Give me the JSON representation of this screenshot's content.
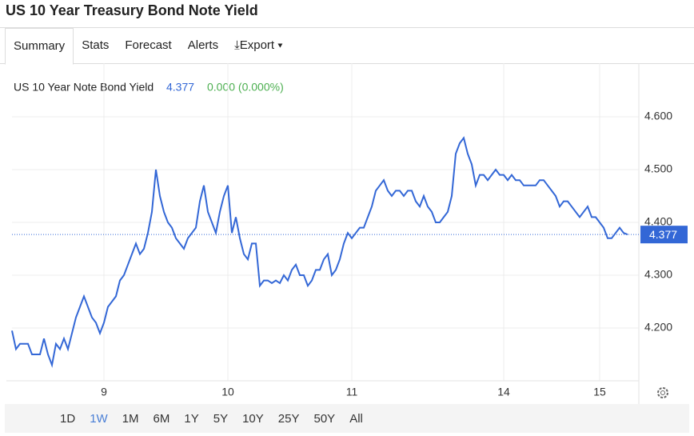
{
  "header": {
    "title": "US 10 Year Treasury Bond Note Yield"
  },
  "tabs": [
    "Summary",
    "Stats",
    "Forecast",
    "Alerts",
    "Export"
  ],
  "quote": {
    "name": "US 10 Year Note Bond Yield",
    "price": "4.377",
    "change": "0.000 (0.000%)"
  },
  "ranges": [
    "1D",
    "1W",
    "1M",
    "6M",
    "1Y",
    "5Y",
    "10Y",
    "25Y",
    "50Y",
    "All"
  ],
  "chart_data": {
    "type": "line",
    "color": "#3367d6",
    "ylim": [
      4.1,
      4.7
    ],
    "xlim": [
      0,
      156
    ],
    "yticks": [
      {
        "value": 4.2,
        "label": "4.200"
      },
      {
        "value": 4.3,
        "label": "4.300"
      },
      {
        "value": 4.4,
        "label": "4.400"
      },
      {
        "value": 4.5,
        "label": "4.500"
      },
      {
        "value": 4.6,
        "label": "4.600"
      }
    ],
    "xticks": [
      {
        "value": 23,
        "label": "9"
      },
      {
        "value": 54,
        "label": "10"
      },
      {
        "value": 85,
        "label": "11"
      },
      {
        "value": 123,
        "label": "14"
      },
      {
        "value": 147,
        "label": "15"
      }
    ],
    "grid": true,
    "values": [
      4.195,
      4.16,
      4.17,
      4.17,
      4.17,
      4.15,
      4.15,
      4.15,
      4.18,
      4.15,
      4.13,
      4.17,
      4.16,
      4.18,
      4.16,
      4.19,
      4.22,
      4.24,
      4.26,
      4.24,
      4.22,
      4.21,
      4.19,
      4.21,
      4.24,
      4.25,
      4.26,
      4.29,
      4.3,
      4.32,
      4.34,
      4.36,
      4.34,
      4.35,
      4.38,
      4.42,
      4.5,
      4.45,
      4.42,
      4.4,
      4.39,
      4.37,
      4.36,
      4.35,
      4.37,
      4.38,
      4.39,
      4.44,
      4.47,
      4.42,
      4.4,
      4.38,
      4.42,
      4.45,
      4.47,
      4.38,
      4.41,
      4.37,
      4.34,
      4.33,
      4.36,
      4.36,
      4.28,
      4.29,
      4.29,
      4.285,
      4.29,
      4.285,
      4.3,
      4.29,
      4.31,
      4.32,
      4.3,
      4.3,
      4.28,
      4.29,
      4.31,
      4.31,
      4.33,
      4.34,
      4.3,
      4.31,
      4.33,
      4.36,
      4.38,
      4.37,
      4.38,
      4.39,
      4.39,
      4.41,
      4.43,
      4.46,
      4.47,
      4.48,
      4.46,
      4.45,
      4.46,
      4.46,
      4.45,
      4.46,
      4.46,
      4.44,
      4.43,
      4.45,
      4.43,
      4.42,
      4.4,
      4.4,
      4.41,
      4.42,
      4.45,
      4.53,
      4.55,
      4.56,
      4.53,
      4.51,
      4.47,
      4.49,
      4.49,
      4.48,
      4.49,
      4.5,
      4.49,
      4.49,
      4.48,
      4.49,
      4.48,
      4.48,
      4.47,
      4.47,
      4.47,
      4.47,
      4.48,
      4.48,
      4.47,
      4.46,
      4.45,
      4.43,
      4.44,
      4.44,
      4.43,
      4.42,
      4.41,
      4.42,
      4.43,
      4.41,
      4.41,
      4.4,
      4.39,
      4.37,
      4.37,
      4.38,
      4.39,
      4.38,
      4.377
    ]
  }
}
